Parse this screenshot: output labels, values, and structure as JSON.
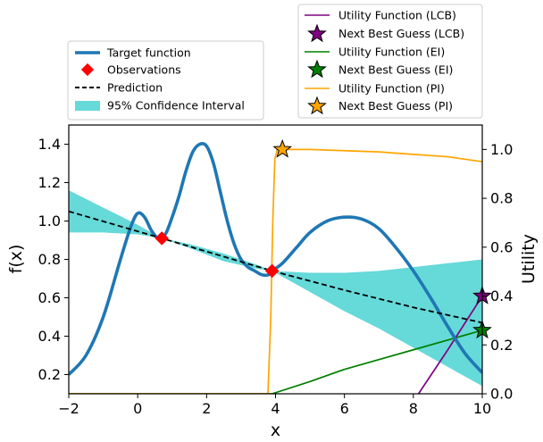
{
  "chart_data": {
    "type": "line",
    "xlabel": "x",
    "ylabel_left": "f(x)",
    "ylabel_right": "Utility",
    "xlim": [
      -2,
      10
    ],
    "ylim_left": [
      0.1,
      1.5
    ],
    "ylim_right": [
      0.0,
      1.1
    ],
    "x_ticks": [
      -2,
      0,
      2,
      4,
      6,
      8,
      10
    ],
    "x_tick_labels": [
      "−2",
      "0",
      "2",
      "4",
      "6",
      "8",
      "10"
    ],
    "y_left_ticks": [
      0.2,
      0.4,
      0.6,
      0.8,
      1.0,
      1.2,
      1.4
    ],
    "y_left_tick_labels": [
      "0.2",
      "0.4",
      "0.6",
      "0.8",
      "1.0",
      "1.2",
      "1.4"
    ],
    "y_right_ticks": [
      0.0,
      0.2,
      0.4,
      0.6,
      0.8,
      1.0
    ],
    "y_right_tick_labels": [
      "0.0",
      "0.2",
      "0.4",
      "0.6",
      "0.8",
      "1.0"
    ],
    "grid": false,
    "legend_left": {
      "placement": "above plot, left",
      "entries": [
        "Target function",
        "Observations",
        "Prediction",
        "95% Confidence Interval"
      ]
    },
    "legend_right": {
      "placement": "above plot, right",
      "entries": [
        "Utility Function (LCB)",
        "Next Best Guess (LCB)",
        "Utility Function (EI)",
        "Next Best Guess (EI)",
        "Utility Function (PI)",
        "Next Best Guess (PI)"
      ]
    },
    "colors": {
      "target": "#1f77b4",
      "observations": "#ff0000",
      "prediction": "#000000",
      "confidence": "#66d9d9",
      "lcb": "#800080",
      "ei": "#008000",
      "pi": "#ffa500"
    },
    "series": [
      {
        "name": "Target function",
        "axis": "left",
        "x": [
          -2.0,
          -1.5,
          -1.0,
          -0.5,
          -0.2,
          0.0,
          0.2,
          0.4,
          0.6,
          0.8,
          1.0,
          1.2,
          1.4,
          1.6,
          1.8,
          2.0,
          2.2,
          2.4,
          2.6,
          2.8,
          3.0,
          3.2,
          3.4,
          3.6,
          3.8,
          3.9,
          4.2,
          4.6,
          5.0,
          5.5,
          6.0,
          6.5,
          7.0,
          7.5,
          8.0,
          8.5,
          9.0,
          9.5,
          10.0
        ],
        "y": [
          0.2,
          0.3,
          0.5,
          0.8,
          0.97,
          1.04,
          1.02,
          0.95,
          0.91,
          0.93,
          1.02,
          1.13,
          1.26,
          1.36,
          1.4,
          1.39,
          1.3,
          1.15,
          1.0,
          0.88,
          0.8,
          0.76,
          0.74,
          0.72,
          0.72,
          0.74,
          0.78,
          0.86,
          0.94,
          1.0,
          1.02,
          1.01,
          0.96,
          0.86,
          0.74,
          0.6,
          0.45,
          0.31,
          0.21
        ]
      },
      {
        "name": "Prediction",
        "axis": "left",
        "x": [
          -2.0,
          0.7,
          3.9,
          6.0,
          8.0,
          10.0
        ],
        "y": [
          1.05,
          0.91,
          0.74,
          0.64,
          0.55,
          0.47
        ]
      },
      {
        "name": "95% Confidence Interval",
        "axis": "left",
        "x": [
          -2.0,
          -1.0,
          0.0,
          0.7,
          1.5,
          2.5,
          3.5,
          3.9,
          5.0,
          6.0,
          7.0,
          8.0,
          9.0,
          10.0
        ],
        "lower": [
          0.94,
          0.94,
          0.93,
          0.91,
          0.86,
          0.79,
          0.75,
          0.74,
          0.63,
          0.53,
          0.44,
          0.34,
          0.24,
          0.14
        ],
        "upper": [
          1.16,
          1.07,
          0.98,
          0.91,
          0.88,
          0.83,
          0.77,
          0.74,
          0.73,
          0.73,
          0.74,
          0.76,
          0.78,
          0.8
        ]
      },
      {
        "name": "Utility Function (LCB)",
        "axis": "right",
        "x": [
          8.15,
          9.0,
          10.0
        ],
        "y": [
          0.0,
          0.18,
          0.4
        ]
      },
      {
        "name": "Utility Function (EI)",
        "axis": "right",
        "x": [
          -2.0,
          3.9,
          5.0,
          6.0,
          7.0,
          8.0,
          9.0,
          10.0
        ],
        "y": [
          0.0,
          0.0,
          0.05,
          0.1,
          0.14,
          0.18,
          0.22,
          0.26
        ]
      },
      {
        "name": "Utility Function (PI)",
        "axis": "right",
        "x": [
          -2.0,
          3.78,
          3.86,
          3.92,
          3.98,
          4.05,
          5.0,
          6.0,
          7.0,
          8.0,
          9.0,
          10.0
        ],
        "y": [
          0.0,
          0.0,
          0.3,
          0.7,
          0.96,
          1.0,
          1.0,
          0.995,
          0.99,
          0.98,
          0.97,
          0.95
        ]
      }
    ],
    "observations": {
      "x": [
        0.7,
        3.9
      ],
      "y": [
        0.91,
        0.74
      ]
    },
    "next_best_guesses": [
      {
        "name": "Next Best Guess (LCB)",
        "x": 10.0,
        "y": 0.4
      },
      {
        "name": "Next Best Guess (EI)",
        "x": 10.0,
        "y": 0.26
      },
      {
        "name": "Next Best Guess (PI)",
        "x": 4.2,
        "y": 1.0
      }
    ]
  }
}
